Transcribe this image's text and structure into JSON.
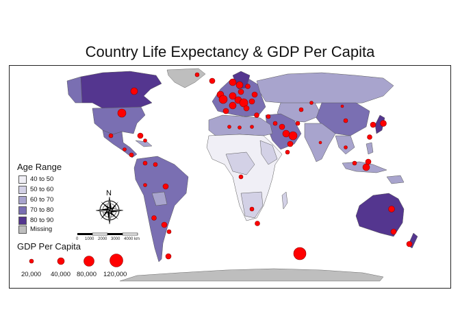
{
  "title": "Country Life Expectancy & GDP Per Capita",
  "legend_age": {
    "title": "Age Range",
    "items": [
      {
        "label": "40 to 50",
        "color": "#f0eff6"
      },
      {
        "label": "50 to 60",
        "color": "#d3d1e6"
      },
      {
        "label": "60 to 70",
        "color": "#a8a4cd"
      },
      {
        "label": "70 to 80",
        "color": "#7a6fb2"
      },
      {
        "label": "80 to 90",
        "color": "#54368f"
      },
      {
        "label": "Missing",
        "color": "#bebebe"
      }
    ]
  },
  "legend_gdp": {
    "title": "GDP Per Capita",
    "items": [
      "20,000",
      "40,000",
      "80,000",
      "120,000"
    ],
    "bubble_color": "#ff0000"
  },
  "north_arrow": {
    "label": "N"
  },
  "scale_bar": {
    "labels": [
      "0",
      "1000",
      "2000",
      "3000",
      "4000 km"
    ]
  }
}
